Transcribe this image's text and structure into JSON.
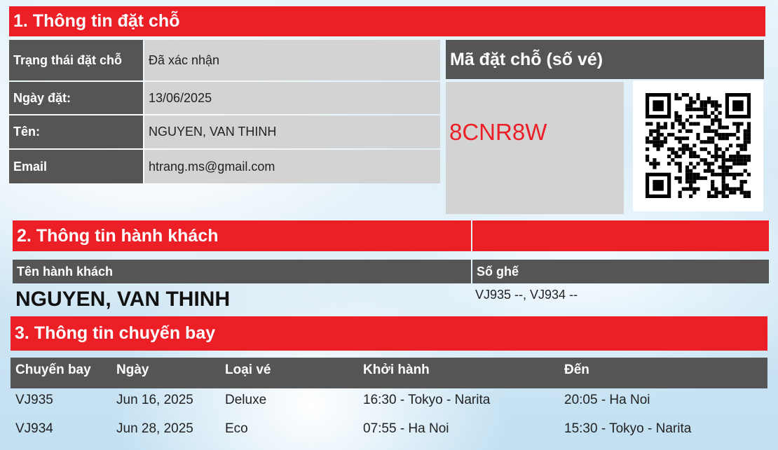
{
  "section1": {
    "title": "1. Thông tin đặt chỗ",
    "rows": [
      {
        "label": "Trạng thái đặt chỗ",
        "value": "Đã xác nhận"
      },
      {
        "label": "Ngày đặt:",
        "value": "13/06/2025"
      },
      {
        "label": "Tên:",
        "value": "NGUYEN, VAN THINH"
      },
      {
        "label": "Email",
        "value": "htrang.ms@gmail.com"
      }
    ],
    "code_title": "Mã đặt chỗ (số vé)",
    "code": "8CNR8W",
    "code_color": "#ec1f27"
  },
  "section2": {
    "title": "2. Thông tin hành khách",
    "col_name": "Tên hành khách",
    "col_seat": "Số ghế",
    "passenger": "NGUYEN, VAN THINH",
    "seats": "VJ935 --, VJ934 --"
  },
  "section3": {
    "title": "3. Thông tin chuyến bay",
    "headers": [
      "Chuyến bay",
      "Ngày",
      "Loại vé",
      "Khởi hành",
      "Đến"
    ],
    "rows": [
      [
        "VJ935",
        "Jun 16, 2025",
        "Deluxe",
        "16:30 - Tokyo - Narita",
        "20:05 - Ha Noi"
      ],
      [
        "VJ934",
        "Jun 28, 2025",
        "Eco",
        "07:55 - Ha Noi",
        "15:30 - Tokyo - Narita"
      ]
    ]
  },
  "colors": {
    "red": "#ec1f27",
    "dark": "#555555",
    "light": "#d3d3d3"
  }
}
